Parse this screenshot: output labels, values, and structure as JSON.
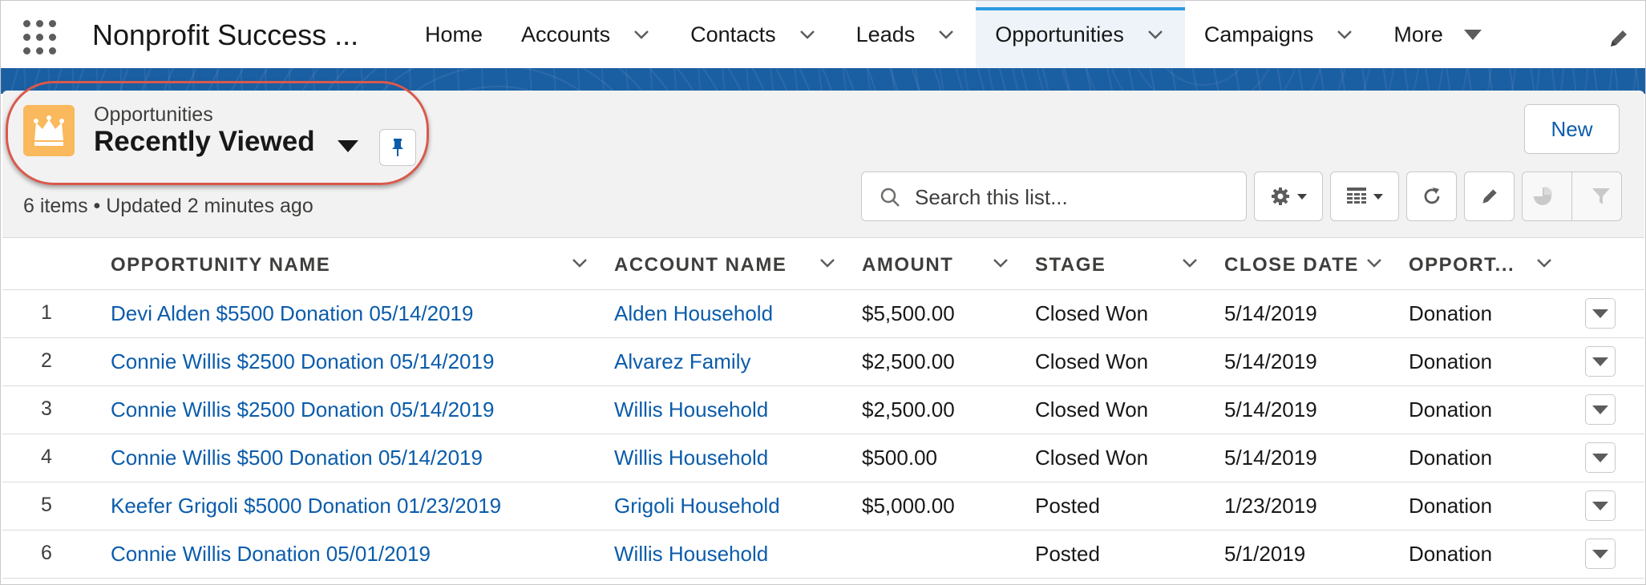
{
  "app": {
    "name": "Nonprofit Success ..."
  },
  "nav": {
    "tabs": [
      {
        "label": "Home",
        "has_menu": false
      },
      {
        "label": "Accounts",
        "has_menu": true
      },
      {
        "label": "Contacts",
        "has_menu": true
      },
      {
        "label": "Leads",
        "has_menu": true
      },
      {
        "label": "Opportunities",
        "has_menu": true,
        "active": true
      },
      {
        "label": "Campaigns",
        "has_menu": true
      },
      {
        "label": "More",
        "has_menu": true
      }
    ]
  },
  "list_header": {
    "object_label": "Opportunities",
    "view_name": "Recently Viewed",
    "meta": "6 items • Updated 2 minutes ago",
    "new_button": "New",
    "search_placeholder": "Search this list..."
  },
  "table": {
    "columns": [
      "OPPORTUNITY NAME",
      "ACCOUNT NAME",
      "AMOUNT",
      "STAGE",
      "CLOSE DATE",
      "OPPORT..."
    ],
    "rows": [
      {
        "num": "1",
        "name": "Devi Alden $5500 Donation 05/14/2019",
        "account": "Alden Household",
        "amount": "$5,500.00",
        "stage": "Closed Won",
        "close_date": "5/14/2019",
        "type": "Donation"
      },
      {
        "num": "2",
        "name": "Connie Willis $2500 Donation 05/14/2019",
        "account": "Alvarez Family",
        "amount": "$2,500.00",
        "stage": "Closed Won",
        "close_date": "5/14/2019",
        "type": "Donation"
      },
      {
        "num": "3",
        "name": "Connie Willis $2500 Donation 05/14/2019",
        "account": "Willis Household",
        "amount": "$2,500.00",
        "stage": "Closed Won",
        "close_date": "5/14/2019",
        "type": "Donation"
      },
      {
        "num": "4",
        "name": "Connie Willis $500 Donation 05/14/2019",
        "account": "Willis Household",
        "amount": "$500.00",
        "stage": "Closed Won",
        "close_date": "5/14/2019",
        "type": "Donation"
      },
      {
        "num": "5",
        "name": "Keefer Grigoli $5000 Donation 01/23/2019",
        "account": "Grigoli Household",
        "amount": "$5,000.00",
        "stage": "Posted",
        "close_date": "1/23/2019",
        "type": "Donation"
      },
      {
        "num": "6",
        "name": "Connie Willis Donation 05/01/2019",
        "account": "Willis Household",
        "amount": "",
        "stage": "Posted",
        "close_date": "5/1/2019",
        "type": "Donation"
      }
    ]
  },
  "colors": {
    "link": "#0b5cab",
    "brand_band": "#1b5fa3",
    "active_tab_indicator": "#2c9ae0",
    "object_icon": "#f9b95c",
    "highlight_annotation": "#d9594c"
  },
  "icons": {
    "app_launcher": "app-launcher-icon",
    "edit_nav": "pencil-icon",
    "object": "crown-icon",
    "pin": "pin-icon",
    "search": "search-icon",
    "settings": "gear-icon",
    "display_as": "table-icon",
    "refresh": "refresh-icon",
    "inline_edit": "pencil-icon",
    "charts": "pie-chart-icon",
    "filters": "filter-icon"
  }
}
